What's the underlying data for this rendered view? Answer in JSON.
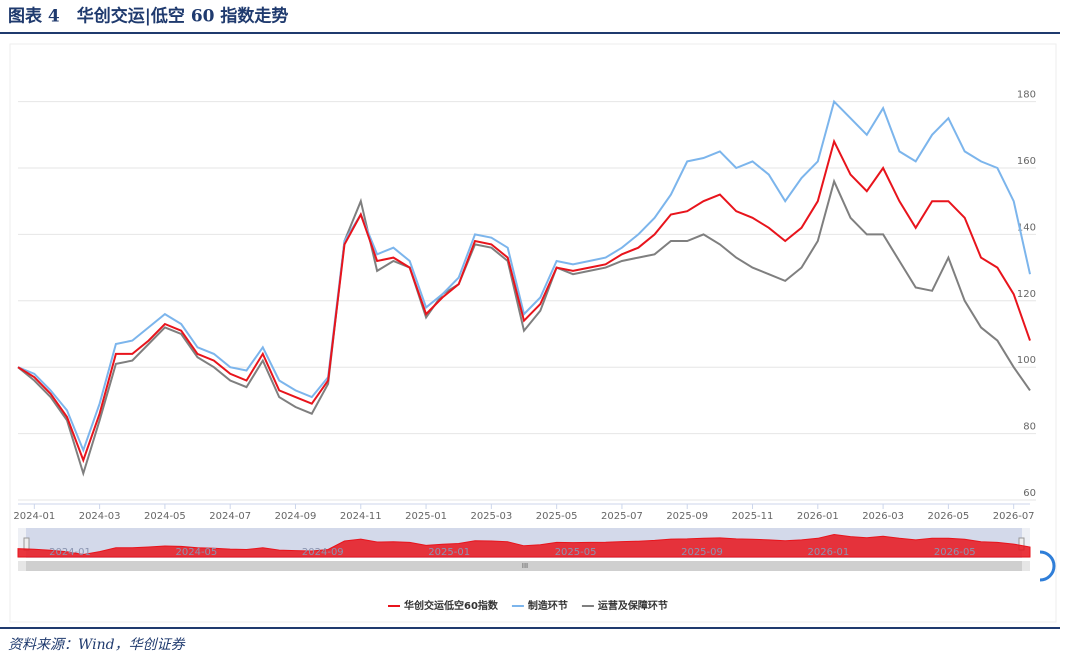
{
  "chart_data": {
    "type": "line",
    "title": "图表 4　华创交运|低空 60 指数走势",
    "source": "资料来源：Wind，华创证券",
    "categories": [
      null,
      "2024-01",
      null,
      null,
      null,
      "2024-03",
      null,
      null,
      null,
      "2024-05",
      null,
      null,
      null,
      "2024-07",
      null,
      null,
      null,
      "2024-09",
      null,
      null,
      null,
      "2024-11",
      null,
      null,
      null,
      "2025-01",
      null,
      null,
      null,
      "2025-03",
      null,
      null,
      null,
      "2025-05",
      null,
      null,
      null,
      "2025-07",
      null,
      null,
      null,
      "2025-09",
      null,
      null,
      null,
      "2025-11",
      null,
      null,
      null,
      "2026-01",
      null,
      null,
      null,
      "2026-03",
      null,
      null,
      null,
      "2026-05",
      null,
      null,
      null,
      "2026-07",
      null
    ],
    "series": [
      {
        "name": "华创交运低空60指数",
        "color": "#e8141c",
        "values": [
          100,
          97,
          92,
          85,
          72,
          86,
          104,
          104,
          108,
          113,
          111,
          104,
          102,
          98,
          96,
          104,
          93,
          91,
          89,
          96,
          137,
          146,
          132,
          133,
          130,
          116,
          121,
          125,
          138,
          137,
          133,
          114,
          119,
          130,
          129,
          130,
          131,
          134,
          136,
          140,
          146,
          147,
          150,
          152,
          147,
          145,
          142,
          138,
          142,
          150,
          168,
          158,
          153,
          160,
          150,
          142,
          150,
          150,
          145,
          133,
          130,
          122,
          108
        ]
      },
      {
        "name": "制造环节",
        "color": "#7cb5ec",
        "values": [
          100,
          98,
          93,
          87,
          75,
          89,
          107,
          108,
          112,
          116,
          113,
          106,
          104,
          100,
          99,
          106,
          96,
          93,
          91,
          97,
          138,
          146,
          134,
          136,
          132,
          118,
          122,
          127,
          140,
          139,
          136,
          116,
          121,
          132,
          131,
          132,
          133,
          136,
          140,
          145,
          152,
          162,
          163,
          165,
          160,
          162,
          158,
          150,
          157,
          162,
          180,
          175,
          170,
          178,
          165,
          162,
          170,
          175,
          165,
          162,
          160,
          150,
          128
        ]
      },
      {
        "name": "运营及保障环节",
        "color": "#7f7f7f",
        "values": [
          100,
          96,
          91,
          84,
          68,
          84,
          101,
          102,
          107,
          112,
          110,
          103,
          100,
          96,
          94,
          102,
          91,
          88,
          86,
          95,
          138,
          150,
          129,
          132,
          130,
          115,
          122,
          125,
          137,
          136,
          132,
          111,
          117,
          130,
          128,
          129,
          130,
          132,
          133,
          134,
          138,
          138,
          140,
          137,
          133,
          130,
          128,
          126,
          130,
          138,
          156,
          145,
          140,
          140,
          132,
          124,
          123,
          133,
          120,
          112,
          108,
          100,
          93
        ]
      }
    ],
    "ylim": [
      60,
      185
    ],
    "yticks": [
      60,
      80,
      100,
      120,
      140,
      160,
      180
    ],
    "grid": true,
    "legend": "bottom",
    "navigator_labels": [
      "2024-01",
      "2024-05",
      "2024-09",
      "2025-01",
      "2025-05",
      "2025-09",
      "2026-01",
      "2026-05"
    ]
  }
}
